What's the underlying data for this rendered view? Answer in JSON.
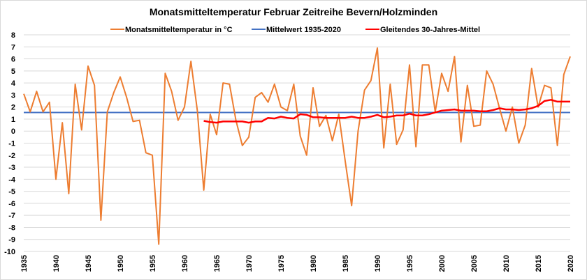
{
  "chart_data": {
    "type": "line",
    "title": "Monatsmitteltemperatur Februar Zeitreihe Bevern/Holzminden",
    "xlabel": "",
    "ylabel": "",
    "xlim": [
      1935,
      2020
    ],
    "ylim": [
      -10,
      8
    ],
    "x_ticks": [
      1935,
      1940,
      1945,
      1950,
      1955,
      1960,
      1965,
      1970,
      1975,
      1980,
      1985,
      1990,
      1995,
      2000,
      2005,
      2010,
      2015,
      2020
    ],
    "y_ticks": [
      8,
      7,
      6,
      5,
      4,
      3,
      2,
      1,
      0,
      -1,
      -2,
      -3,
      -4,
      -5,
      -6,
      -7,
      -8,
      -9,
      -10
    ],
    "grid": true,
    "legend_position": "top",
    "series": [
      {
        "name": "Monatsmitteltemperatur in °C",
        "color": "#ed7d31",
        "x_start": 1935,
        "values": [
          3.1,
          1.6,
          3.3,
          1.6,
          2.4,
          -4.0,
          0.7,
          -5.2,
          3.9,
          0.1,
          5.4,
          3.8,
          -7.4,
          1.6,
          3.2,
          4.5,
          2.8,
          0.8,
          0.9,
          -1.8,
          -2.0,
          -9.4,
          4.8,
          3.3,
          0.9,
          2.0,
          5.8,
          1.7,
          -4.9,
          1.4,
          -0.3,
          4.0,
          3.9,
          0.9,
          -1.2,
          -0.5,
          2.8,
          3.2,
          2.4,
          3.9,
          2.0,
          1.7,
          3.9,
          -0.4,
          -2.0,
          3.6,
          0.4,
          1.3,
          -0.8,
          1.4,
          -2.5,
          -6.2,
          0.0,
          3.4,
          4.2,
          6.9,
          -1.4,
          3.9,
          -1.1,
          0.1,
          5.5,
          -1.3,
          5.5,
          5.5,
          1.6,
          4.8,
          3.3,
          6.2,
          -0.9,
          3.8,
          0.4,
          0.5,
          5.0,
          3.9,
          1.9,
          0.0,
          2.0,
          -1.0,
          0.5,
          5.2,
          2.0,
          3.8,
          3.6,
          -1.2,
          4.7,
          6.2
        ]
      },
      {
        "name": "Mittelwert 1935-2020",
        "color": "#4472c4",
        "x_start": 1935,
        "constant": 1.55
      },
      {
        "name": "Gleitendes 30-Jahres-Mittel",
        "color": "#ff0000",
        "x_start": 1963,
        "values": [
          0.85,
          0.75,
          0.7,
          0.8,
          0.8,
          0.8,
          0.8,
          0.7,
          0.8,
          0.8,
          1.1,
          1.05,
          1.2,
          1.1,
          1.05,
          1.4,
          1.35,
          1.15,
          1.15,
          1.1,
          1.1,
          1.1,
          1.1,
          1.2,
          1.1,
          1.1,
          1.2,
          1.35,
          1.15,
          1.2,
          1.3,
          1.3,
          1.45,
          1.3,
          1.3,
          1.4,
          1.55,
          1.7,
          1.75,
          1.8,
          1.7,
          1.7,
          1.7,
          1.65,
          1.65,
          1.75,
          1.9,
          1.8,
          1.8,
          1.75,
          1.8,
          1.9,
          2.1,
          2.5,
          2.6,
          2.45,
          2.45,
          2.45
        ]
      }
    ]
  }
}
